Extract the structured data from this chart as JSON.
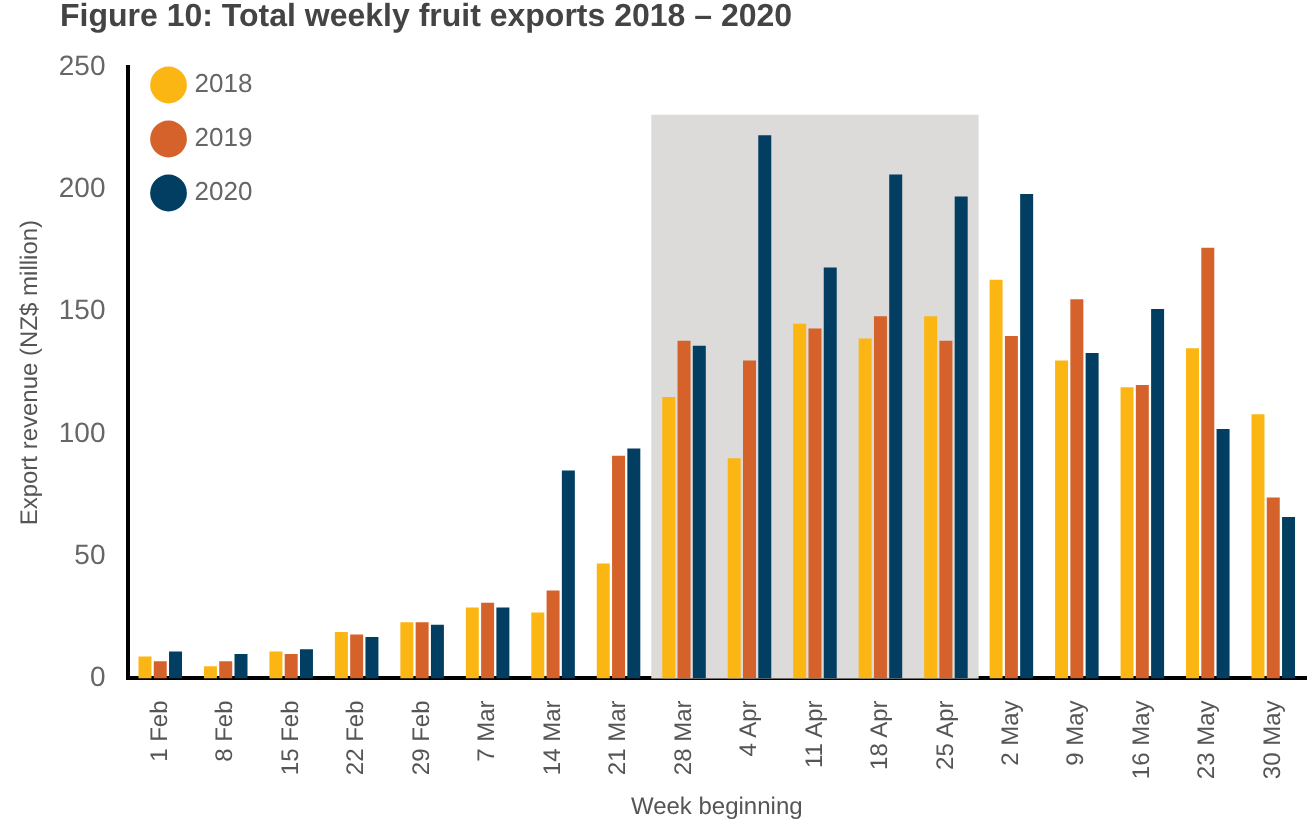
{
  "chart_data": {
    "type": "bar",
    "title": "Figure 10: Total weekly fruit exports 2018 – 2020",
    "xlabel": "Week beginning",
    "ylabel": "Export revenue (NZ$ million)",
    "categories": [
      "1 Feb",
      "8 Feb",
      "15 Feb",
      "22 Feb",
      "29 Feb",
      "7 Mar",
      "14 Mar",
      "21 Mar",
      "28 Mar",
      "4 Apr",
      "11 Apr",
      "18 Apr",
      "25 Apr",
      "2 May",
      "9 May",
      "16 May",
      "23 May",
      "30 May"
    ],
    "series": [
      {
        "name": "2018",
        "color": "#fbb614",
        "values": [
          9,
          5,
          11,
          19,
          23,
          29,
          27,
          47,
          115,
          90,
          145,
          139,
          148,
          163,
          130,
          119,
          135,
          108
        ]
      },
      {
        "name": "2019",
        "color": "#d4622a",
        "values": [
          7,
          7,
          10,
          18,
          23,
          31,
          36,
          91,
          138,
          130,
          143,
          148,
          138,
          140,
          155,
          120,
          176,
          74
        ]
      },
      {
        "name": "2020",
        "color": "#023e61",
        "values": [
          11,
          10,
          12,
          17,
          22,
          29,
          85,
          94,
          136,
          222,
          168,
          206,
          197,
          198,
          133,
          151,
          102,
          66
        ]
      }
    ],
    "ylim": [
      0,
      250
    ],
    "yticks": [
      0,
      50,
      100,
      150,
      200,
      250
    ],
    "bands": [
      {
        "axis": "x",
        "from": "28 Mar",
        "to": "25 Apr",
        "color": "#dcdbd9"
      }
    ],
    "grid": false,
    "legend": "top left"
  }
}
